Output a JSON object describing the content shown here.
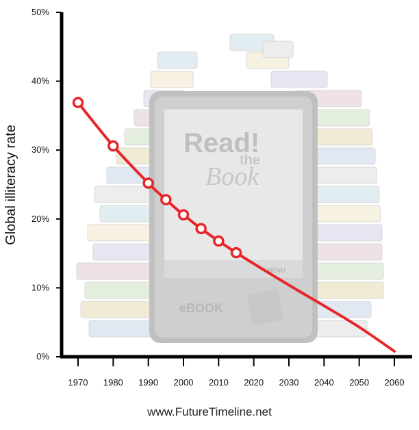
{
  "chart_data": {
    "type": "line",
    "title": "",
    "xlabel": "",
    "ylabel": "Global illiteracy rate",
    "x_ticks": [
      "1970",
      "1980",
      "1990",
      "2000",
      "2010",
      "2020",
      "2030",
      "2040",
      "2050",
      "2060"
    ],
    "y_ticks": [
      "0%",
      "10%",
      "20%",
      "30%",
      "40%",
      "50%"
    ],
    "xlim": [
      1965,
      2065
    ],
    "ylim": [
      0,
      50
    ],
    "grid": false,
    "series": [
      {
        "color": "#e8262a",
        "points": [
          {
            "x": 1970,
            "y": 36.9
          },
          {
            "x": 1980,
            "y": 30.6
          },
          {
            "x": 1990,
            "y": 25.2
          },
          {
            "x": 1995,
            "y": 22.8
          },
          {
            "x": 2000,
            "y": 20.6
          },
          {
            "x": 2005,
            "y": 18.6
          },
          {
            "x": 2010,
            "y": 16.8
          },
          {
            "x": 2015,
            "y": 15.1
          }
        ],
        "trend": [
          {
            "x": 2015,
            "y": 15.1
          },
          {
            "x": 2020,
            "y": 13.5
          },
          {
            "x": 2030,
            "y": 10.4
          },
          {
            "x": 2040,
            "y": 7.4
          },
          {
            "x": 2050,
            "y": 4.3
          },
          {
            "x": 2060,
            "y": 0.8
          }
        ]
      }
    ]
  },
  "background_image": {
    "description_icon": "stack-of-books-and-ereader",
    "screen_title": "Read!",
    "screen_subtitle_1": "the",
    "screen_subtitle_2": "Book",
    "device_brand": "eBOOK",
    "menu_label": "MENU"
  },
  "credit": "www.FutureTimeline.net"
}
